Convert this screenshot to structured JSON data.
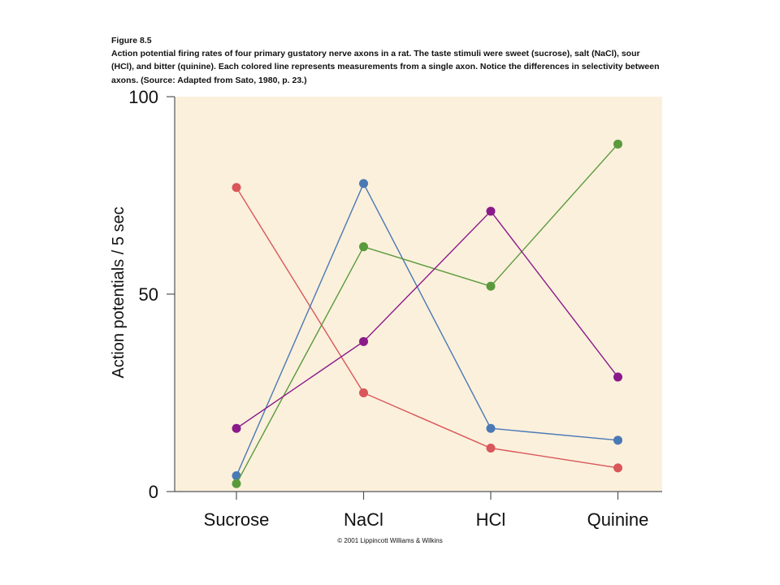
{
  "caption": {
    "figure_label": "Figure 8.5",
    "text": "Action potential firing rates of four primary gustatory nerve axons in a rat. The taste stimuli were sweet (sucrose), salt (NaCl), sour (HCl), and bitter (quinine). Each colored line represents measurements from a single axon. Notice the differences in selectivity between axons. (Source: Adapted from Sato, 1980, p. 23.)"
  },
  "copyright": "© 2001 Lippincott Williams & Wilkins",
  "colors": {
    "plot_background": "#fbf0dc",
    "axis": "#555555",
    "red": "#d9565a",
    "blue": "#4a79b5",
    "green": "#5a9a3c",
    "purple": "#8a1a8a"
  },
  "chart_data": {
    "type": "line",
    "title": "",
    "xlabel": "",
    "ylabel": "Action potentials / 5 sec",
    "categories": [
      "Sucrose",
      "NaCl",
      "HCl",
      "Quinine"
    ],
    "ylim": [
      0,
      100
    ],
    "yticks": [
      0,
      50,
      100
    ],
    "grid": false,
    "series": [
      {
        "color": "red",
        "values": [
          77,
          25,
          11,
          6
        ]
      },
      {
        "color": "blue",
        "values": [
          4,
          78,
          16,
          13
        ]
      },
      {
        "color": "green",
        "values": [
          2,
          62,
          52,
          88
        ]
      },
      {
        "color": "purple",
        "values": [
          16,
          38,
          71,
          29
        ]
      }
    ]
  }
}
